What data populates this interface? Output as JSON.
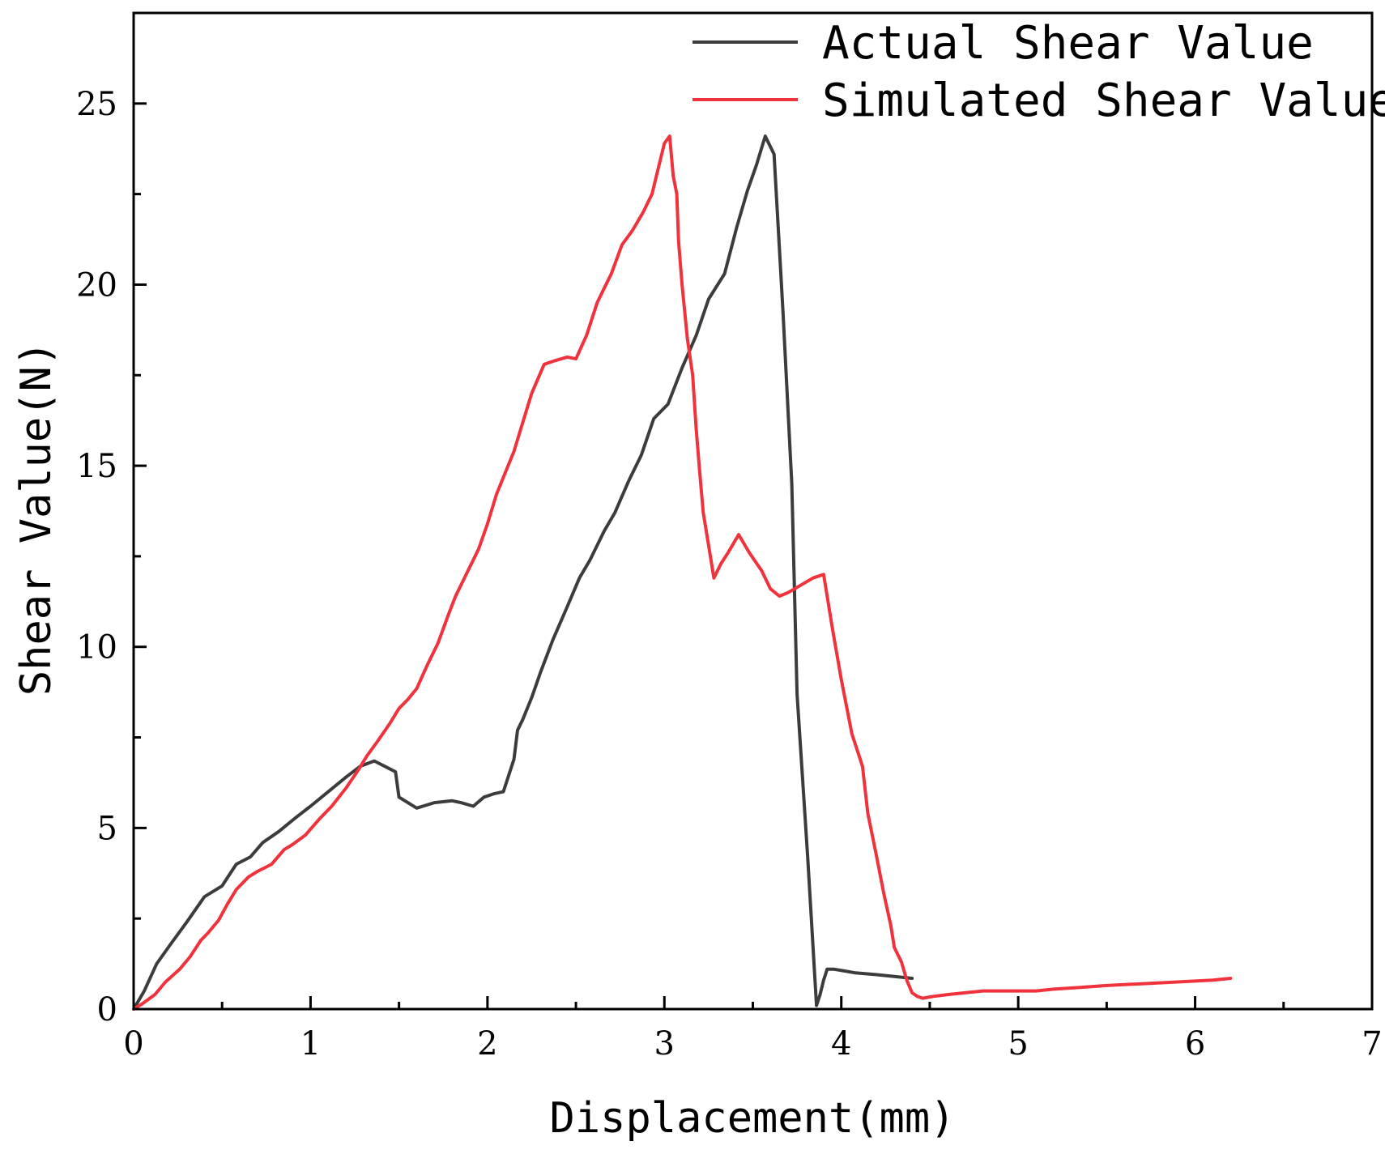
{
  "chart_data": {
    "type": "line",
    "title": "",
    "xlabel": "Displacement(mm)",
    "ylabel": "Shear Value(N)",
    "xlim": [
      0,
      7
    ],
    "ylim": [
      0,
      27.5
    ],
    "xticks": [
      0,
      1,
      2,
      3,
      4,
      5,
      6,
      7
    ],
    "yticks": [
      0,
      5,
      10,
      15,
      20,
      25
    ],
    "grid": false,
    "legend_position": "top-right",
    "series": [
      {
        "name": "Actual Shear Value",
        "color": "#3c3c3c",
        "x": [
          0,
          0.06,
          0.13,
          0.21,
          0.3,
          0.4,
          0.5,
          0.58,
          0.66,
          0.73,
          0.82,
          0.92,
          1.0,
          1.1,
          1.2,
          1.28,
          1.36,
          1.42,
          1.48,
          1.5,
          1.55,
          1.6,
          1.7,
          1.8,
          1.85,
          1.92,
          1.98,
          2.04,
          2.09,
          2.15,
          2.17,
          2.2,
          2.25,
          2.3,
          2.37,
          2.45,
          2.52,
          2.58,
          2.66,
          2.72,
          2.8,
          2.87,
          2.94,
          3.02,
          3.1,
          3.18,
          3.25,
          3.34,
          3.41,
          3.47,
          3.52,
          3.57,
          3.62,
          3.67,
          3.72,
          3.75,
          3.81,
          3.86,
          3.88,
          3.9,
          3.91,
          3.92,
          3.96,
          4.02,
          4.08,
          4.2,
          4.3,
          4.4
        ],
        "values": [
          0,
          0.5,
          1.25,
          1.8,
          2.4,
          3.1,
          3.4,
          4.0,
          4.2,
          4.6,
          4.9,
          5.3,
          5.6,
          6.0,
          6.4,
          6.7,
          6.85,
          6.7,
          6.55,
          5.85,
          5.7,
          5.55,
          5.7,
          5.75,
          5.7,
          5.6,
          5.85,
          5.95,
          6.0,
          6.9,
          7.7,
          8.0,
          8.6,
          9.3,
          10.2,
          11.1,
          11.9,
          12.4,
          13.2,
          13.7,
          14.6,
          15.3,
          16.3,
          16.7,
          17.7,
          18.6,
          19.6,
          20.3,
          21.6,
          22.6,
          23.3,
          24.1,
          23.6,
          19.3,
          14.5,
          8.7,
          4.2,
          0.1,
          0.4,
          0.8,
          0.95,
          1.1,
          1.1,
          1.05,
          1.0,
          0.95,
          0.9,
          0.85
        ],
        "x_dense": [
          3.62,
          3.67,
          3.72,
          3.77,
          3.82,
          3.86,
          3.88,
          3.9,
          3.91,
          3.92
        ],
        "values_dense": [
          23.6,
          24.2,
          23.6,
          21.5,
          19.3,
          14.5,
          5.0,
          0.1,
          0.4,
          0.8
        ]
      },
      {
        "name": "Simulated Shear Value",
        "color": "#f0323c",
        "x": [
          0,
          0.05,
          0.12,
          0.18,
          0.26,
          0.32,
          0.38,
          0.42,
          0.48,
          0.53,
          0.58,
          0.65,
          0.7,
          0.78,
          0.85,
          0.9,
          0.97,
          1.05,
          1.12,
          1.2,
          1.27,
          1.32,
          1.38,
          1.45,
          1.5,
          1.55,
          1.6,
          1.66,
          1.72,
          1.78,
          1.82,
          1.88,
          1.95,
          2.0,
          2.05,
          2.1,
          2.15,
          2.2,
          2.25,
          2.32,
          2.38,
          2.45,
          2.5,
          2.56,
          2.62,
          2.66,
          2.7,
          2.76,
          2.82,
          2.88,
          2.93,
          2.97,
          3.0,
          3.03,
          3.05,
          3.07,
          3.08,
          3.1,
          3.13,
          3.16,
          3.18,
          3.2,
          3.22,
          3.25,
          3.28,
          3.32,
          3.36,
          3.42,
          3.48,
          3.55,
          3.6,
          3.65,
          3.7,
          3.77,
          3.84,
          3.9,
          3.95,
          4.0,
          4.06,
          4.12,
          4.15,
          4.2,
          4.24,
          4.28,
          4.3,
          4.34,
          4.37,
          4.4,
          4.43,
          4.46,
          4.52,
          4.6,
          4.7,
          4.8,
          4.9,
          5.0,
          5.1,
          5.2,
          5.35,
          5.5,
          5.7,
          5.9,
          6.1,
          6.2
        ],
        "values": [
          0,
          0.15,
          0.4,
          0.75,
          1.1,
          1.45,
          1.9,
          2.1,
          2.45,
          2.9,
          3.3,
          3.65,
          3.8,
          4.0,
          4.4,
          4.55,
          4.8,
          5.25,
          5.6,
          6.1,
          6.6,
          7.0,
          7.4,
          7.9,
          8.3,
          8.55,
          8.85,
          9.5,
          10.1,
          10.9,
          11.4,
          12.0,
          12.7,
          13.4,
          14.2,
          14.8,
          15.4,
          16.2,
          17.0,
          17.8,
          17.9,
          18.0,
          17.95,
          18.6,
          19.5,
          19.9,
          20.3,
          21.1,
          21.5,
          22.0,
          22.5,
          23.3,
          23.9,
          24.1,
          23.0,
          22.5,
          21.2,
          20.0,
          18.5,
          17.5,
          16.0,
          14.8,
          13.7,
          12.8,
          11.9,
          12.3,
          12.6,
          13.1,
          12.6,
          12.1,
          11.6,
          11.4,
          11.5,
          11.7,
          11.9,
          12.0,
          10.5,
          9.1,
          7.6,
          6.7,
          5.4,
          4.2,
          3.2,
          2.3,
          1.7,
          1.3,
          0.8,
          0.45,
          0.35,
          0.3,
          0.35,
          0.4,
          0.45,
          0.5,
          0.5,
          0.5,
          0.5,
          0.55,
          0.6,
          0.65,
          0.7,
          0.75,
          0.8,
          0.85
        ]
      }
    ]
  }
}
